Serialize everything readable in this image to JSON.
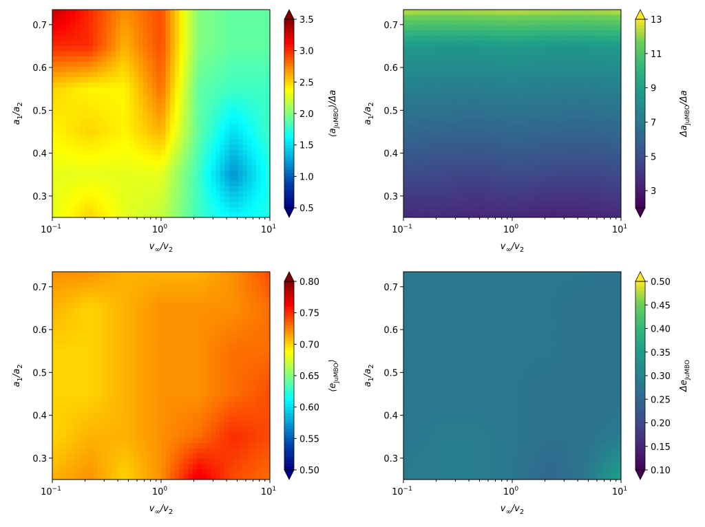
{
  "chart_data": [
    {
      "type": "heatmap",
      "panel": "top-left",
      "colormap": "jet",
      "xlabel_base": "v",
      "xlabel_sub1": "∞",
      "xlabel_mid": "/v",
      "xlabel_sub2": "2",
      "ylabel_base": "a",
      "ylabel_sub1": "1",
      "ylabel_mid": "/a",
      "ylabel_sub2": "2",
      "x_scale": "log",
      "xlim": [
        0.1,
        10
      ],
      "ylim": [
        0.25,
        0.735
      ],
      "x_ticks": [
        {
          "base": "10",
          "exp": "−1"
        },
        {
          "base": "10",
          "exp": "0"
        },
        {
          "base": "10",
          "exp": "1"
        }
      ],
      "y_ticks": [
        "0.3",
        "0.4",
        "0.5",
        "0.6",
        "0.7"
      ],
      "colorbar": {
        "label_pre": "⟨a",
        "label_sub": "JuMBO",
        "label_post": "⟩/Δa",
        "min": 0.5,
        "max": 3.5,
        "extend": "both",
        "ticks": [
          "0.5",
          "1.0",
          "1.5",
          "2.0",
          "2.5",
          "3.0",
          "3.5"
        ]
      },
      "x_values": [
        0.1,
        0.22,
        0.46,
        1.0,
        2.2,
        4.6,
        10
      ],
      "y_values": [
        0.25,
        0.35,
        0.45,
        0.55,
        0.65,
        0.735
      ],
      "z_values": [
        [
          2.3,
          2.5,
          2.3,
          2.2,
          1.8,
          1.6,
          1.7
        ],
        [
          2.3,
          2.3,
          2.3,
          2.3,
          1.8,
          1.2,
          1.7
        ],
        [
          2.4,
          2.5,
          2.4,
          2.6,
          1.9,
          1.5,
          1.8
        ],
        [
          2.5,
          2.4,
          2.4,
          2.8,
          1.9,
          1.8,
          1.8
        ],
        [
          3.0,
          3.0,
          2.6,
          2.9,
          2.0,
          1.9,
          1.9
        ],
        [
          3.3,
          3.0,
          2.7,
          2.9,
          2.0,
          1.9,
          1.9
        ]
      ]
    },
    {
      "type": "heatmap",
      "panel": "top-right",
      "colormap": "viridis",
      "xlabel_base": "v",
      "xlabel_sub1": "∞",
      "xlabel_mid": "/v",
      "xlabel_sub2": "2",
      "ylabel_base": "a",
      "ylabel_sub1": "1",
      "ylabel_mid": "/a",
      "ylabel_sub2": "2",
      "x_scale": "log",
      "xlim": [
        0.1,
        10
      ],
      "ylim": [
        0.25,
        0.735
      ],
      "x_ticks": [
        {
          "base": "10",
          "exp": "−1"
        },
        {
          "base": "10",
          "exp": "0"
        },
        {
          "base": "10",
          "exp": "1"
        }
      ],
      "y_ticks": [
        "0.3",
        "0.4",
        "0.5",
        "0.6",
        "0.7"
      ],
      "colorbar": {
        "label_pre": "Δa",
        "label_sub": "JuMBO",
        "label_post": "/Δa",
        "min": 2,
        "max": 13,
        "extend": "both",
        "ticks": [
          "3",
          "5",
          "7",
          "9",
          "11",
          "13"
        ]
      },
      "x_values": [
        0.1,
        0.22,
        0.46,
        1.0,
        2.2,
        4.6,
        10
      ],
      "y_values": [
        0.25,
        0.35,
        0.45,
        0.55,
        0.65,
        0.735
      ],
      "z_values": [
        [
          3.5,
          3.6,
          3.4,
          3.5,
          3.2,
          3.3,
          3.5
        ],
        [
          4.8,
          4.7,
          4.6,
          4.8,
          4.7,
          4.6,
          4.8
        ],
        [
          6.2,
          6.1,
          6.0,
          6.2,
          6.1,
          6.0,
          6.2
        ],
        [
          7.4,
          7.3,
          7.3,
          7.4,
          7.3,
          7.3,
          7.4
        ],
        [
          8.7,
          8.6,
          8.6,
          8.8,
          8.6,
          8.6,
          8.8
        ],
        [
          12.5,
          12.3,
          12.4,
          12.5,
          12.4,
          12.3,
          12.5
        ]
      ]
    },
    {
      "type": "heatmap",
      "panel": "bottom-left",
      "colormap": "jet",
      "xlabel_base": "v",
      "xlabel_sub1": "∞",
      "xlabel_mid": "/v",
      "xlabel_sub2": "2",
      "ylabel_base": "a",
      "ylabel_sub1": "1",
      "ylabel_mid": "/a",
      "ylabel_sub2": "2",
      "x_scale": "log",
      "xlim": [
        0.1,
        10
      ],
      "ylim": [
        0.25,
        0.735
      ],
      "x_ticks": [
        {
          "base": "10",
          "exp": "−1"
        },
        {
          "base": "10",
          "exp": "0"
        },
        {
          "base": "10",
          "exp": "1"
        }
      ],
      "y_ticks": [
        "0.3",
        "0.4",
        "0.5",
        "0.6",
        "0.7"
      ],
      "colorbar": {
        "label_pre": "⟨e",
        "label_sub": "JuMBO",
        "label_post": "⟩",
        "min": 0.5,
        "max": 0.8,
        "extend": "both",
        "ticks": [
          "0.50",
          "0.55",
          "0.60",
          "0.65",
          "0.70",
          "0.75",
          "0.80"
        ]
      },
      "x_values": [
        0.1,
        0.22,
        0.46,
        1.0,
        2.2,
        4.6,
        10
      ],
      "y_values": [
        0.25,
        0.35,
        0.45,
        0.55,
        0.65,
        0.735
      ],
      "z_values": [
        [
          0.71,
          0.72,
          0.7,
          0.72,
          0.77,
          0.74,
          0.73
        ],
        [
          0.7,
          0.71,
          0.71,
          0.72,
          0.73,
          0.75,
          0.74
        ],
        [
          0.7,
          0.7,
          0.71,
          0.72,
          0.72,
          0.73,
          0.74
        ],
        [
          0.7,
          0.7,
          0.71,
          0.72,
          0.72,
          0.73,
          0.73
        ],
        [
          0.71,
          0.7,
          0.71,
          0.72,
          0.72,
          0.72,
          0.73
        ],
        [
          0.72,
          0.72,
          0.71,
          0.71,
          0.71,
          0.72,
          0.74
        ]
      ]
    },
    {
      "type": "heatmap",
      "panel": "bottom-right",
      "colormap": "viridis",
      "xlabel_base": "v",
      "xlabel_sub1": "∞",
      "xlabel_mid": "/v",
      "xlabel_sub2": "2",
      "ylabel_base": "a",
      "ylabel_sub1": "1",
      "ylabel_mid": "/a",
      "ylabel_sub2": "2",
      "x_scale": "log",
      "xlim": [
        0.1,
        10
      ],
      "ylim": [
        0.25,
        0.735
      ],
      "x_ticks": [
        {
          "base": "10",
          "exp": "−1"
        },
        {
          "base": "10",
          "exp": "0"
        },
        {
          "base": "10",
          "exp": "1"
        }
      ],
      "y_ticks": [
        "0.3",
        "0.4",
        "0.5",
        "0.6",
        "0.7"
      ],
      "colorbar": {
        "label_pre": "Δe",
        "label_sub": "JuMBO",
        "label_post": "",
        "min": 0.1,
        "max": 0.5,
        "extend": "both",
        "ticks": [
          "0.10",
          "0.15",
          "0.20",
          "0.25",
          "0.30",
          "0.35",
          "0.40",
          "0.45",
          "0.50"
        ]
      },
      "x_values": [
        0.1,
        0.22,
        0.46,
        1.0,
        2.2,
        4.6,
        10
      ],
      "y_values": [
        0.25,
        0.35,
        0.45,
        0.55,
        0.65,
        0.735
      ],
      "z_values": [
        [
          0.29,
          0.29,
          0.29,
          0.28,
          0.25,
          0.28,
          0.36
        ],
        [
          0.28,
          0.29,
          0.29,
          0.28,
          0.27,
          0.27,
          0.29
        ],
        [
          0.28,
          0.28,
          0.28,
          0.28,
          0.27,
          0.27,
          0.27
        ],
        [
          0.28,
          0.28,
          0.28,
          0.28,
          0.28,
          0.27,
          0.27
        ],
        [
          0.28,
          0.28,
          0.28,
          0.28,
          0.28,
          0.27,
          0.27
        ],
        [
          0.28,
          0.28,
          0.28,
          0.28,
          0.28,
          0.28,
          0.27
        ]
      ]
    }
  ]
}
